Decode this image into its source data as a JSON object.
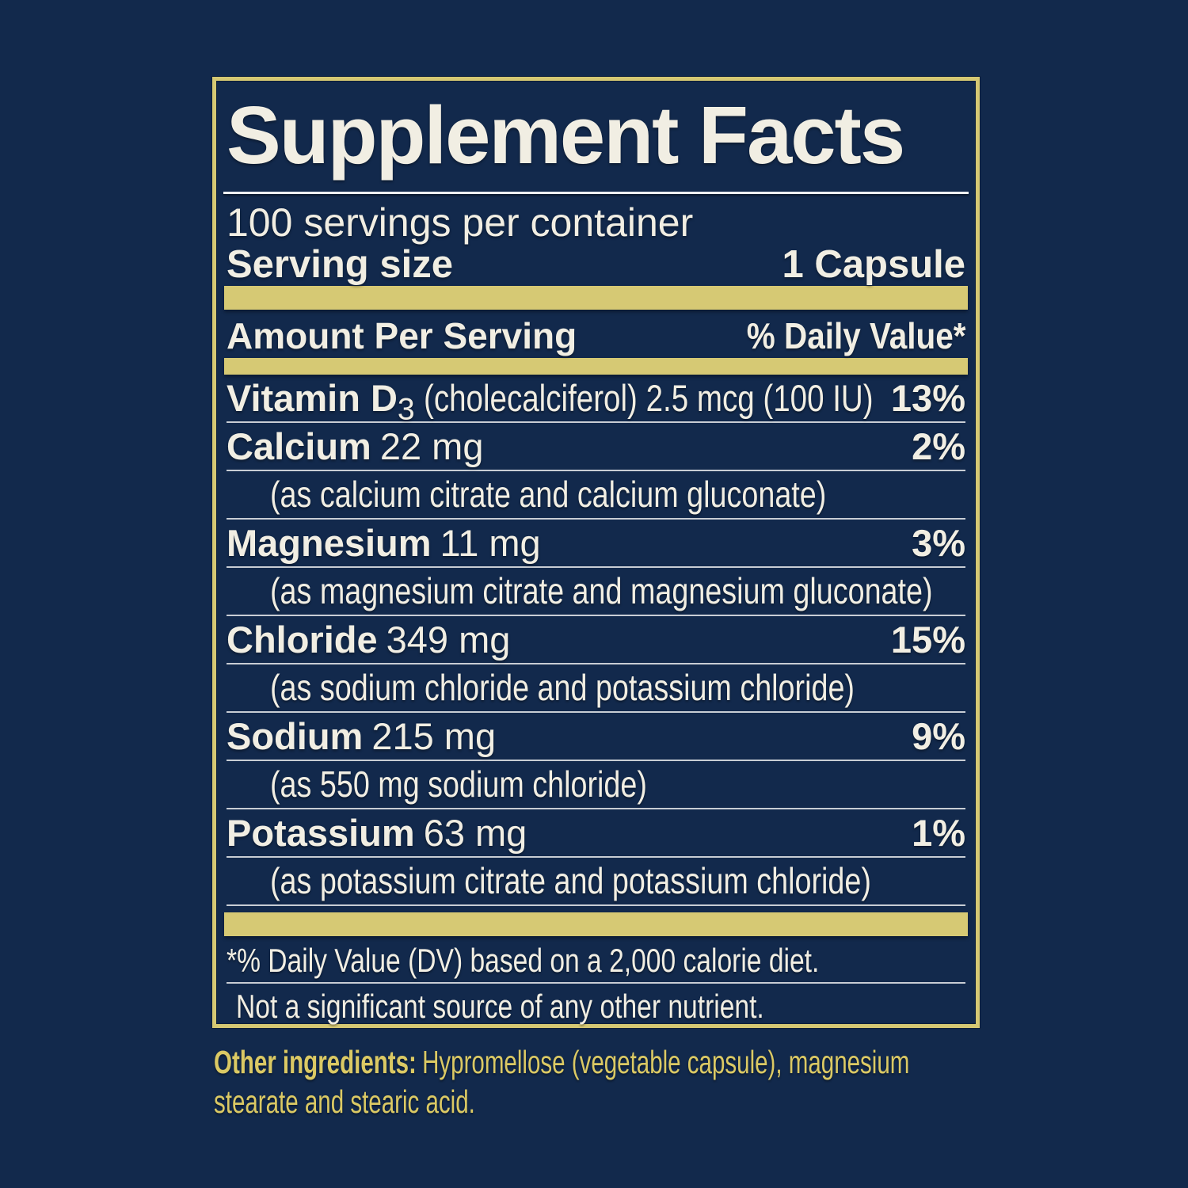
{
  "colors": {
    "background_navy": "#12294c",
    "gold_accent": "#d5c873",
    "cream_text": "#f1eee3",
    "separator_gray": "#c8cdd4",
    "gold_text": "#dbc964"
  },
  "facts": {
    "title": "Supplement Facts",
    "servings_per_container": "100 servings per container",
    "serving_size_label": "Serving size",
    "serving_size_value": "1 Capsule",
    "amount_per_serving_label": "Amount Per Serving",
    "daily_value_label": "% Daily Value*",
    "rows": [
      {
        "name": "Vitamin D",
        "name_sub": "3",
        "detail": "(cholecalciferol) 2.5 mcg (100 IU)",
        "dv": "13%"
      },
      {
        "name": "Calcium",
        "detail": "22 mg",
        "dv": "2%",
        "sub": "(as calcium citrate and calcium gluconate)"
      },
      {
        "name": "Magnesium",
        "detail": "11 mg",
        "dv": "3%",
        "sub": "(as magnesium citrate and magnesium gluconate)"
      },
      {
        "name": "Chloride",
        "detail": "349 mg",
        "dv": "15%",
        "sub": "(as sodium chloride and potassium chloride)"
      },
      {
        "name": "Sodium",
        "detail": "215 mg",
        "dv": "9%",
        "sub": "(as 550 mg sodium chloride)"
      },
      {
        "name": "Potassium",
        "detail": "63 mg",
        "dv": "1%",
        "sub": "(as potassium citrate and potassium chloride)"
      }
    ],
    "footnote_daily_value": "*% Daily Value (DV) based on a 2,000 calorie diet.",
    "footnote_no_other": "Not a significant source of any other nutrient."
  },
  "other_ingredients": {
    "label": "Other ingredients:",
    "text": "Hypromellose (vegetable capsule), magnesium stearate and stearic acid."
  }
}
